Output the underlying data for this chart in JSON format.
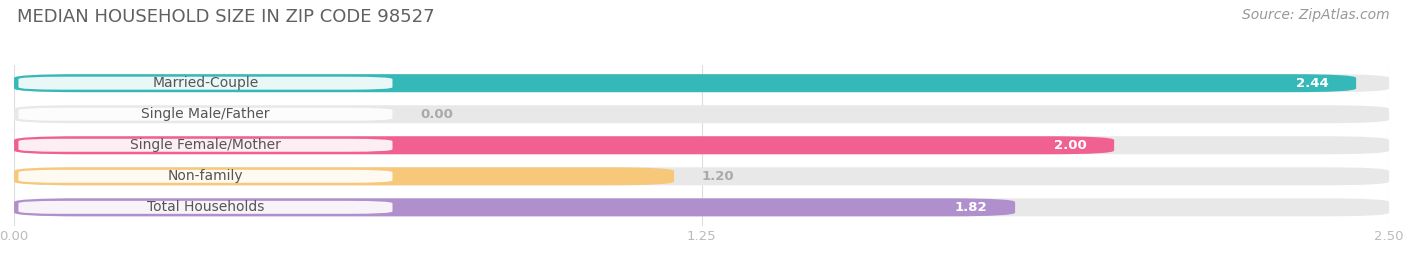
{
  "title": "MEDIAN HOUSEHOLD SIZE IN ZIP CODE 98527",
  "source": "Source: ZipAtlas.com",
  "categories": [
    "Married-Couple",
    "Single Male/Father",
    "Single Female/Mother",
    "Non-family",
    "Total Households"
  ],
  "values": [
    2.44,
    0.0,
    2.0,
    1.2,
    1.82
  ],
  "bar_colors": [
    "#35b8b8",
    "#a0aee0",
    "#f06090",
    "#f8c87a",
    "#b090cc"
  ],
  "track_color": "#e8e8e8",
  "xlim_max": 2.5,
  "xticks": [
    0.0,
    1.25,
    2.5
  ],
  "title_fontsize": 13,
  "source_fontsize": 10,
  "label_fontsize": 10,
  "value_fontsize": 9.5,
  "bar_height": 0.58,
  "background_color": "#ffffff",
  "title_color": "#606060",
  "source_color": "#999999",
  "tick_color": "#bbbbbb",
  "value_text_color_inside": "#ffffff",
  "value_text_color_outside": "#aaaaaa",
  "label_text_color": "#555555",
  "grid_color": "#dddddd"
}
